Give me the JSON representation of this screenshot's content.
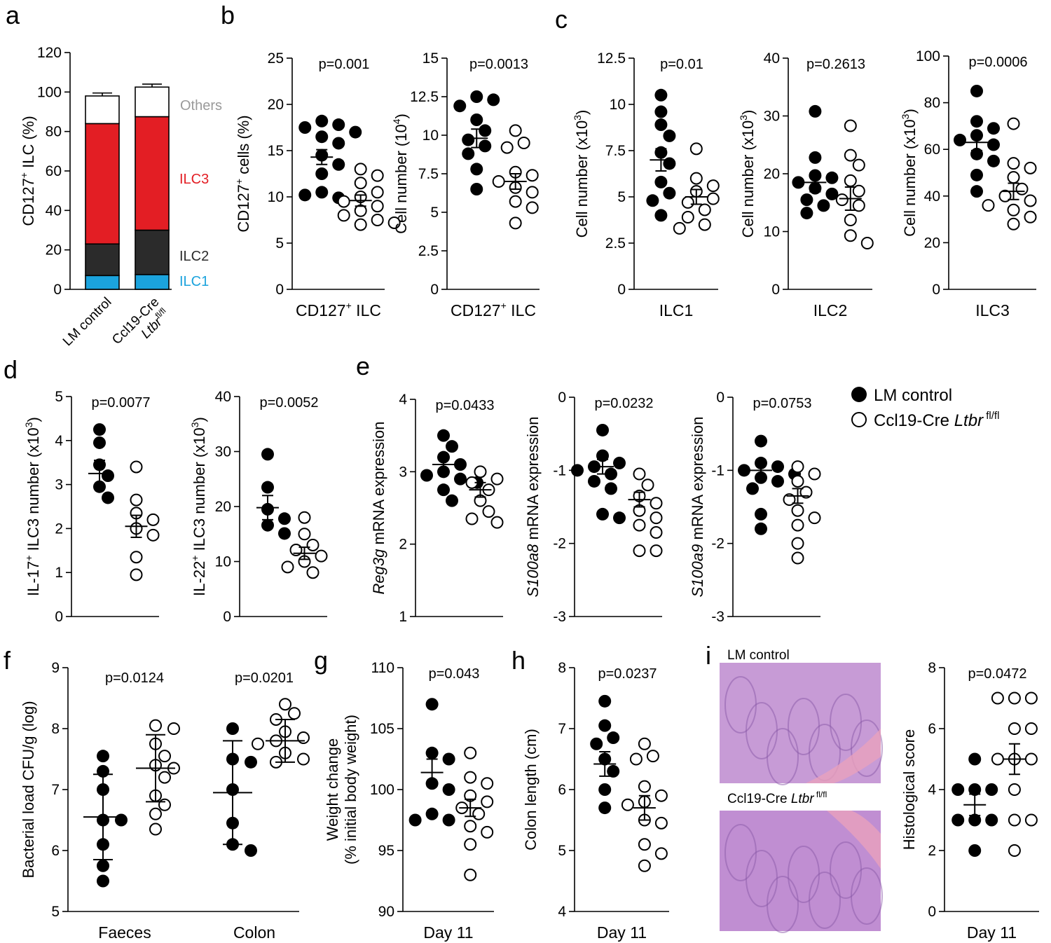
{
  "legend": {
    "control": "LM control",
    "cko": "Ccl19-Cre Ltbr fl/fl"
  },
  "histology": {
    "control_label": "LM control",
    "cko_label": "Ccl19-Cre Ltbr fl/fl"
  },
  "colors": {
    "ILC1": "#1ba3dd",
    "ILC2": "#2b2b2b",
    "ILC3": "#e31e24",
    "Others": "#ffffff",
    "others_label": "#9a9a9a",
    "histo_bg": "#c79bd6"
  },
  "chart_data": [
    {
      "panel": "a",
      "type": "bar",
      "stacked": true,
      "categories": [
        "LM control",
        "Ccl19-Cre Ltbr fl/fl"
      ],
      "ylabel": "CD127+ ILC (%)",
      "ylim": [
        0,
        120
      ],
      "yticks": [
        "0",
        "20",
        "40",
        "60",
        "80",
        "100",
        "120"
      ],
      "series": [
        {
          "name": "ILC1",
          "values": [
            7,
            7.5
          ],
          "err": [
            0.5,
            0.5
          ]
        },
        {
          "name": "ILC2",
          "values": [
            16,
            22.5
          ],
          "err": [
            1.5,
            1.5
          ]
        },
        {
          "name": "ILC3",
          "values": [
            61,
            57.5
          ],
          "err": [
            1.5,
            2
          ]
        },
        {
          "name": "Others",
          "values": [
            14,
            15
          ],
          "err": [
            1.5,
            1.5
          ]
        }
      ]
    },
    {
      "panel": "b",
      "type": "scatter",
      "xlabel": "CD127+ ILC",
      "ylabel": "CD127+ cells (%)",
      "ylim": [
        0,
        25
      ],
      "yticks": [
        "0",
        "5",
        "10",
        "15",
        "20",
        "25"
      ],
      "p": "p=0.001",
      "groups": [
        {
          "name": "LM control",
          "values": [
            18.2,
            17.8,
            17.5,
            17.0,
            16.5,
            15.8,
            14.5,
            13.5,
            12.5,
            10.5,
            9.9,
            10.2
          ],
          "mean": 14.3,
          "sem": 0.8
        },
        {
          "name": "Ccl19-Cre Ltbr fl/fl",
          "values": [
            13.0,
            12.3,
            11.5,
            10.5,
            10.0,
            9.5,
            9.0,
            8.5,
            8.0,
            7.5,
            7.2,
            7.0
          ],
          "mean": 9.6,
          "sem": 0.6
        }
      ]
    },
    {
      "panel": "b2",
      "type": "scatter",
      "xlabel": "CD127+ ILC",
      "ylabel": "Cell number (10^4)",
      "ylim": [
        0,
        15
      ],
      "yticks": [
        "0",
        "2.5",
        "5",
        "7.5",
        "10",
        "12.5",
        "15"
      ],
      "p": "p=0.0013",
      "groups": [
        {
          "name": "LM control",
          "values": [
            12.5,
            12.3,
            11.9,
            11.0,
            10.3,
            9.7,
            9.3,
            8.8,
            7.8,
            6.5
          ],
          "mean": 9.8,
          "sem": 0.6
        },
        {
          "name": "Ccl19-Cre Ltbr fl/fl",
          "values": [
            10.3,
            9.5,
            9.2,
            7.6,
            7.4,
            7.0,
            6.6,
            6.3,
            5.7,
            5.3,
            4.3
          ],
          "mean": 7.0,
          "sem": 0.5
        }
      ]
    },
    {
      "panel": "c",
      "type": "scatter",
      "xlabel": "ILC1",
      "ylabel": "Cell number (x10^3)",
      "ylim": [
        0,
        12.5
      ],
      "yticks": [
        "0",
        "2.5",
        "5",
        "7.5",
        "10",
        "12.5"
      ],
      "p": "p=0.01",
      "groups": [
        {
          "name": "LM control",
          "values": [
            10.5,
            9.6,
            8.9,
            8.3,
            7.4,
            6.8,
            5.8,
            5.2,
            4.8,
            4.0
          ],
          "mean": 7.0,
          "sem": 0.6
        },
        {
          "name": "Ccl19-Cre Ltbr fl/fl",
          "values": [
            7.6,
            6.0,
            5.6,
            5.3,
            4.9,
            4.7,
            4.3,
            3.9,
            3.5,
            3.3
          ],
          "mean": 5.0,
          "sem": 0.4
        }
      ]
    },
    {
      "panel": "c2",
      "type": "scatter",
      "xlabel": "ILC2",
      "ylabel": "Cell number (x10^3)",
      "ylim": [
        0,
        40
      ],
      "yticks": [
        "0",
        "10",
        "20",
        "30",
        "40"
      ],
      "p": "p=0.2613",
      "groups": [
        {
          "name": "LM control",
          "values": [
            30.8,
            22.8,
            19.7,
            19.3,
            18.5,
            17.5,
            16.5,
            15.5,
            14.5,
            13.2
          ],
          "mean": 18.5,
          "sem": 1.6
        },
        {
          "name": "Ccl19-Cre Ltbr fl/fl",
          "values": [
            28.3,
            23.2,
            21.5,
            18.8,
            17.0,
            15.5,
            14.5,
            12.0,
            9.3,
            8.0
          ],
          "mean": 15.7,
          "sem": 2.0
        }
      ]
    },
    {
      "panel": "c3",
      "type": "scatter",
      "xlabel": "ILC3",
      "ylabel": "Cell number (x10^3)",
      "ylim": [
        0,
        100
      ],
      "yticks": [
        "0",
        "20",
        "40",
        "60",
        "80",
        "100"
      ],
      "p": "p=0.0006",
      "groups": [
        {
          "name": "LM control",
          "values": [
            85,
            72,
            69,
            66,
            64,
            62,
            58,
            55,
            49,
            42
          ],
          "mean": 63,
          "sem": 3.5
        },
        {
          "name": "Ccl19-Cre Ltbr fl/fl",
          "values": [
            71,
            54,
            52,
            48,
            43,
            40,
            38,
            36,
            34,
            31,
            28
          ],
          "mean": 42,
          "sem": 3.5
        }
      ]
    },
    {
      "panel": "d",
      "type": "scatter",
      "ylabel": "IL-17+ ILC3 number (x10^3)",
      "ylim": [
        0,
        5
      ],
      "yticks": [
        "0",
        "1",
        "2",
        "3",
        "4",
        "5"
      ],
      "p": "p=0.0077",
      "groups": [
        {
          "name": "LM control",
          "values": [
            4.25,
            3.95,
            3.45,
            3.2,
            2.95,
            2.7
          ],
          "mean": 3.25,
          "sem": 0.3
        },
        {
          "name": "Ccl19-Cre Ltbr fl/fl",
          "values": [
            3.4,
            2.65,
            2.35,
            2.2,
            2.0,
            1.85,
            1.35,
            0.95
          ],
          "mean": 2.05,
          "sem": 0.25
        }
      ]
    },
    {
      "panel": "d2",
      "type": "scatter",
      "ylabel": "IL-22+ ILC3 number (x10^3)",
      "ylim": [
        0,
        40
      ],
      "yticks": [
        "0",
        "10",
        "20",
        "30",
        "40"
      ],
      "p": "p=0.0052",
      "groups": [
        {
          "name": "LM control",
          "values": [
            29.5,
            23.5,
            19.5,
            17.8,
            16.6,
            15.1
          ],
          "mean": 19.8,
          "sem": 2.2
        },
        {
          "name": "Ccl19-Cre Ltbr fl/fl",
          "values": [
            18.0,
            15.0,
            13.0,
            12.1,
            11.0,
            10.0,
            9.0,
            8.0
          ],
          "mean": 11.5,
          "sem": 1.1
        }
      ]
    },
    {
      "panel": "e",
      "type": "scatter",
      "ylabel": "Reg3g mRNA expression",
      "ylim": [
        1,
        4
      ],
      "yticks": [
        "1",
        "2",
        "3",
        "4"
      ],
      "p": "p=0.0433",
      "groups": [
        {
          "name": "LM control",
          "values": [
            3.5,
            3.35,
            3.2,
            3.1,
            3.0,
            2.95,
            2.9,
            2.85,
            2.75,
            2.6
          ],
          "mean": 3.1,
          "sem": 0.1
        },
        {
          "name": "Ccl19-Cre Ltbr fl/fl",
          "values": [
            3.0,
            2.9,
            2.85,
            2.75,
            2.6,
            2.45,
            2.35,
            2.3
          ],
          "mean": 2.75,
          "sem": 0.1
        }
      ]
    },
    {
      "panel": "e2",
      "type": "scatter",
      "ylabel": "S100a8 mRNA expression",
      "ylim": [
        -3,
        0
      ],
      "yticks": [
        "-3",
        "-2",
        "-1",
        "0"
      ],
      "p": "p=0.0232",
      "groups": [
        {
          "name": "LM control",
          "values": [
            -0.45,
            -0.8,
            -0.9,
            -0.95,
            -1.0,
            -1.05,
            -1.15,
            -1.25,
            -1.6,
            -1.65
          ],
          "mean": -0.95,
          "sem": 0.1
        },
        {
          "name": "Ccl19-Cre Ltbr fl/fl",
          "values": [
            -1.05,
            -1.2,
            -1.35,
            -1.45,
            -1.55,
            -1.65,
            -1.75,
            -1.85,
            -2.1,
            -2.1
          ],
          "mean": -1.4,
          "sem": 0.1
        }
      ]
    },
    {
      "panel": "e3",
      "type": "scatter",
      "ylabel": "S100a9 mRNA expression",
      "ylim": [
        -3,
        0
      ],
      "yticks": [
        "-3",
        "-2",
        "-1",
        "0"
      ],
      "p": "p=0.0753",
      "groups": [
        {
          "name": "LM control",
          "values": [
            -0.6,
            -0.9,
            -0.95,
            -1.0,
            -1.05,
            -1.1,
            -1.15,
            -1.25,
            -1.6,
            -1.8
          ],
          "mean": -1.0,
          "sem": 0.1
        },
        {
          "name": "Ccl19-Cre Ltbr fl/fl",
          "values": [
            -0.95,
            -1.05,
            -1.15,
            -1.3,
            -1.4,
            -1.55,
            -1.65,
            -1.75,
            -2.0,
            -2.2
          ],
          "mean": -1.35,
          "sem": 0.1
        }
      ]
    },
    {
      "panel": "f",
      "type": "scatter",
      "ylabel": "Bacterial load CFU/g (log)",
      "categories": [
        "Faeces",
        "Colon"
      ],
      "ylim": [
        5,
        9
      ],
      "yticks": [
        "5",
        "6",
        "7",
        "8",
        "9"
      ],
      "p": [
        "p=0.0124",
        "p=0.0201"
      ],
      "groups": [
        {
          "name": "LM control",
          "cat": 0,
          "values": [
            7.55,
            7.3,
            7.0,
            6.5,
            6.5,
            6.1,
            5.75,
            5.5
          ],
          "mean": 6.55,
          "sd": 0.7
        },
        {
          "name": "Ccl19-Cre Ltbr fl/fl",
          "cat": 0,
          "values": [
            8.05,
            8.0,
            7.75,
            7.55,
            7.4,
            7.35,
            7.2,
            6.9,
            6.75,
            6.6,
            6.35
          ],
          "mean": 7.35,
          "sd": 0.55
        },
        {
          "name": "LM control",
          "cat": 1,
          "values": [
            8.0,
            7.5,
            7.45,
            7.0,
            6.45,
            6.1,
            6.0
          ],
          "mean": 6.95,
          "sd": 0.85
        },
        {
          "name": "Ccl19-Cre Ltbr fl/fl",
          "cat": 1,
          "values": [
            8.4,
            8.25,
            8.15,
            7.95,
            7.85,
            7.8,
            7.75,
            7.6,
            7.5,
            7.45
          ],
          "mean": 7.8,
          "sd": 0.35
        }
      ]
    },
    {
      "panel": "g",
      "type": "scatter",
      "xlabel": "Day 11",
      "ylabel": "Weight change (% initial body weight)",
      "ylim": [
        90,
        110
      ],
      "yticks": [
        "90",
        "95",
        "100",
        "105",
        "110"
      ],
      "p": "p=0.043",
      "groups": [
        {
          "name": "LM control",
          "values": [
            107,
            103,
            102.5,
            100.5,
            100,
            98,
            97.5,
            97.5
          ],
          "mean": 101.4,
          "sem": 1.1
        },
        {
          "name": "Ccl19-Cre Ltbr fl/fl",
          "values": [
            103,
            101,
            100.5,
            99.5,
            99,
            98.5,
            98,
            97,
            96.5,
            95.5,
            93
          ],
          "mean": 98.5,
          "sem": 0.7
        }
      ]
    },
    {
      "panel": "h",
      "type": "scatter",
      "xlabel": "Day 11",
      "ylabel": "Colon length (cm)",
      "ylim": [
        4,
        8
      ],
      "yticks": [
        "4",
        "5",
        "6",
        "7",
        "8"
      ],
      "p": "p=0.0237",
      "groups": [
        {
          "name": "LM control",
          "values": [
            7.45,
            7.05,
            6.85,
            6.75,
            6.5,
            6.3,
            6.0,
            5.7
          ],
          "mean": 6.42,
          "sem": 0.2
        },
        {
          "name": "Ccl19-Cre Ltbr fl/fl",
          "values": [
            6.75,
            6.55,
            6.5,
            6.05,
            5.9,
            5.8,
            5.75,
            5.5,
            5.45,
            5.1,
            4.95,
            4.75
          ],
          "mean": 5.7,
          "sem": 0.2
        }
      ]
    },
    {
      "panel": "i",
      "type": "scatter",
      "xlabel": "Day 11",
      "ylabel": "Histological score",
      "ylim": [
        0,
        8
      ],
      "yticks": [
        "0",
        "2",
        "4",
        "6",
        "8"
      ],
      "p": "p=0.0472",
      "groups": [
        {
          "name": "LM control",
          "values": [
            5,
            4,
            4,
            4,
            3,
            3,
            3,
            2
          ],
          "mean": 3.5,
          "sem": 0.35
        },
        {
          "name": "Ccl19-Cre Ltbr fl/fl",
          "values": [
            7,
            7,
            7,
            6,
            6,
            5,
            5,
            5,
            4,
            3,
            3,
            2
          ],
          "mean": 5.0,
          "sem": 0.5
        }
      ]
    }
  ]
}
